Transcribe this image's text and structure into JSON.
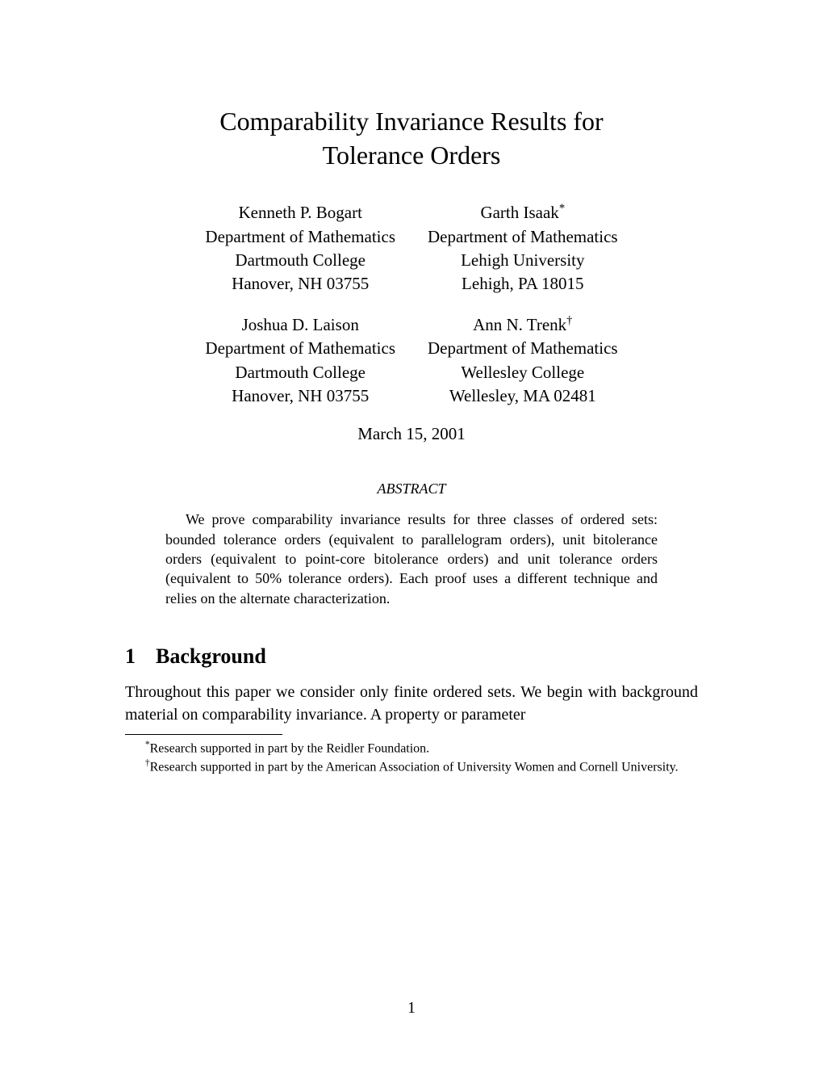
{
  "title": {
    "line1": "Comparability Invariance Results for",
    "line2": "Tolerance Orders"
  },
  "authors": [
    {
      "name": "Kenneth P. Bogart",
      "dept": "Department of Mathematics",
      "institution": "Dartmouth College",
      "address": "Hanover, NH 03755",
      "marker": ""
    },
    {
      "name": "Garth Isaak",
      "dept": "Department of Mathematics",
      "institution": "Lehigh University",
      "address": "Lehigh, PA 18015",
      "marker": "*"
    },
    {
      "name": "Joshua D. Laison",
      "dept": "Department of Mathematics",
      "institution": "Dartmouth College",
      "address": "Hanover, NH 03755",
      "marker": ""
    },
    {
      "name": "Ann N. Trenk",
      "dept": "Department of Mathematics",
      "institution": "Wellesley College",
      "address": "Wellesley, MA 02481",
      "marker": "†"
    }
  ],
  "date": "March 15, 2001",
  "abstract": {
    "title": "ABSTRACT",
    "body": "We prove comparability invariance results for three classes of ordered sets: bounded tolerance orders (equivalent to parallelogram orders), unit bitolerance orders (equivalent to point-core bitolerance orders) and unit tolerance orders (equivalent to 50% tolerance orders). Each proof uses a different technique and relies on the alternate characterization."
  },
  "section": {
    "number": "1",
    "title": "Background"
  },
  "body": "Throughout this paper we consider only finite ordered sets. We begin with background material on comparability invariance. A property or parameter",
  "footnotes": [
    {
      "marker": "*",
      "text": "Research supported in part by the Reidler Foundation."
    },
    {
      "marker": "†",
      "text": "Research supported in part by the American Association of University Women and Cornell University."
    }
  ],
  "page_number": "1"
}
